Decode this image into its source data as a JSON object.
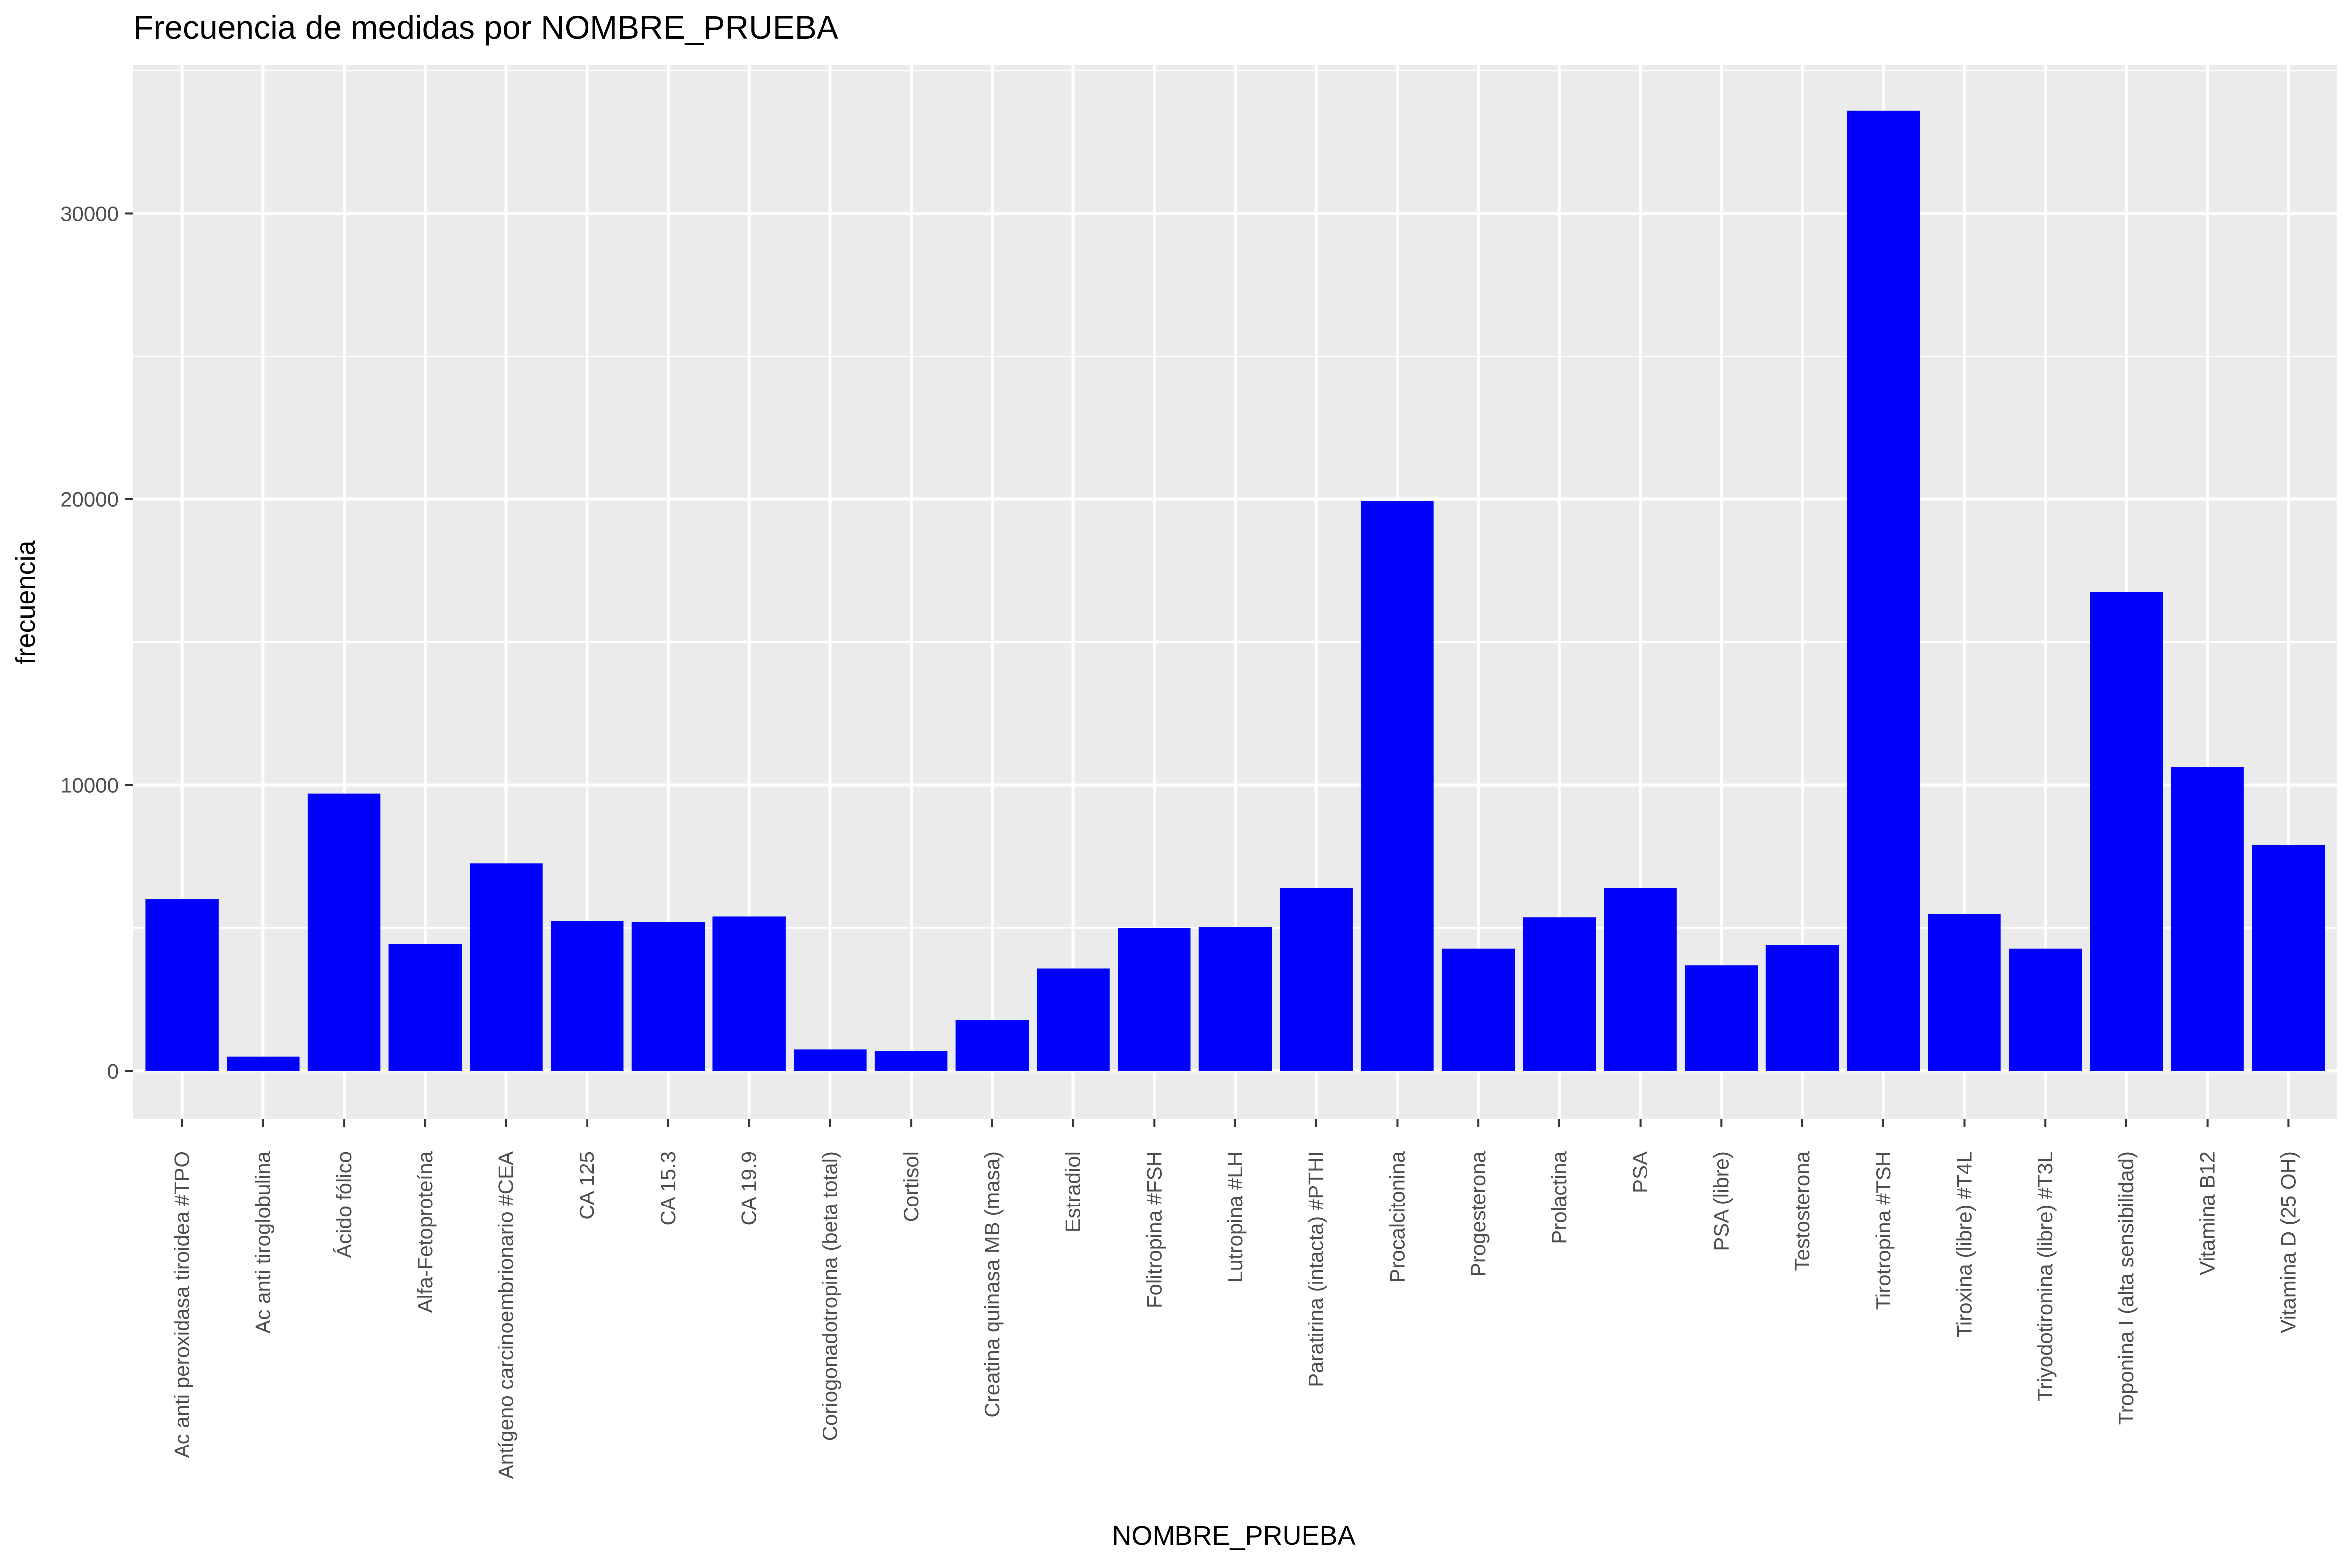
{
  "chart_data": {
    "type": "bar",
    "title": "Frecuencia de medidas por NOMBRE_PRUEBA",
    "xlabel": "NOMBRE_PRUEBA",
    "ylabel": "frecuencia",
    "ylim": [
      -1700,
      35200
    ],
    "y_ticks": [
      0,
      10000,
      20000,
      30000
    ],
    "y_tick_labels": [
      "0",
      "10000",
      "20000",
      "30000"
    ],
    "grid": true,
    "legend": "none",
    "bar_color": "#0000ff",
    "panel_background": "#ebebeb",
    "categories": [
      "Ac anti peroxidasa tiroidea #TPO",
      "Ac anti tiroglobulina",
      "Ácido fólico",
      "Alfa-Fetoproteína",
      "Antígeno carcinoembrionario #CEA",
      "CA 125",
      "CA 15.3",
      "CA 19.9",
      "Coriogonadotropina (beta total)",
      "Cortisol",
      "Creatina quinasa MB (masa)",
      "Estradiol",
      "Folitropina #FSH",
      "Lutropina #LH",
      "Paratirina (intacta) #PTHI",
      "Procalcitonina",
      "Progesterona",
      "Prolactina",
      "PSA",
      "PSA (libre)",
      "Testosterona",
      "Tirotropina #TSH",
      "Tiroxina (libre) #T4L",
      "Triyodotironina (libre) #T3L",
      "Troponina I (alta sensibilidad)",
      "Vitamina B12",
      "Vitamina D (25 OH)"
    ],
    "values": [
      6000,
      500,
      9700,
      4450,
      7250,
      5250,
      5200,
      5400,
      750,
      700,
      1780,
      3570,
      5000,
      5030,
      6400,
      19930,
      4280,
      5370,
      6400,
      3680,
      4400,
      33600,
      5480,
      4280,
      16750,
      10630,
      7900
    ]
  }
}
